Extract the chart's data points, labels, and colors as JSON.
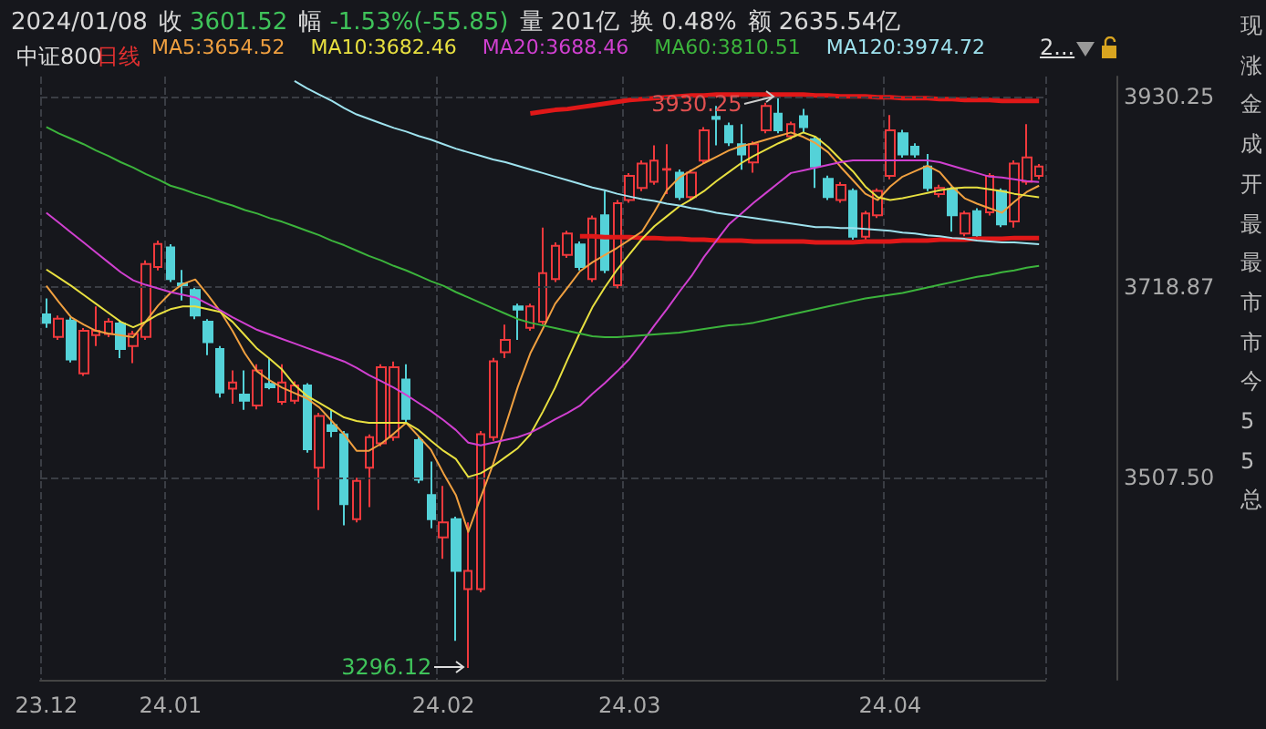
{
  "chart_data": {
    "type": "candlestick",
    "title": "中证800",
    "subtitle": "日线",
    "categories": [
      "23.12",
      null,
      null,
      null,
      null,
      null,
      null,
      null,
      null,
      null,
      "24.01",
      null,
      null,
      null,
      null,
      null,
      null,
      null,
      null,
      null,
      null,
      null,
      null,
      null,
      null,
      null,
      null,
      null,
      null,
      null,
      null,
      null,
      "24.02",
      null,
      null,
      null,
      null,
      null,
      null,
      null,
      null,
      null,
      null,
      null,
      null,
      null,
      null,
      "24.03",
      null,
      null,
      null,
      null,
      null,
      null,
      null,
      null,
      null,
      null,
      null,
      null,
      null,
      null,
      null,
      null,
      null,
      null,
      null,
      null,
      "24.04",
      null,
      null,
      null,
      null,
      null,
      null,
      null,
      null,
      null,
      null,
      null,
      null
    ],
    "ohlc": [
      [
        3688.2,
        3705.8,
        3673.4,
        3678.8
      ],
      [
        3663.3,
        3687,
        3660,
        3683.5
      ],
      [
        3681.5,
        3685,
        3635,
        3638.3
      ],
      [
        3622.8,
        3673,
        3620,
        3670
      ],
      [
        3665.3,
        3697,
        3653.2,
        3670
      ],
      [
        3666.6,
        3684,
        3663,
        3680.1
      ],
      [
        3678.1,
        3681,
        3639.7,
        3649.8
      ],
      [
        3653.2,
        3670,
        3634.3,
        3666.6
      ],
      [
        3663.3,
        3748,
        3660,
        3744.2
      ],
      [
        3740.8,
        3770,
        3737,
        3766.4
      ],
      [
        3762.4,
        3766,
        3724,
        3727.3
      ],
      [
        3722.6,
        3737.4,
        3703.7,
        3720
      ],
      [
        3715.2,
        3719,
        3683,
        3686.9
      ],
      [
        3680.1,
        3683,
        3643,
        3657.37
      ],
      [
        3649.8,
        3653,
        3596,
        3601.52
      ],
      [
        3606,
        3626.2,
        3589.1,
        3612.7
      ],
      [
        3599.2,
        3626.2,
        3582.4,
        3592.5
      ],
      [
        3587.1,
        3632.9,
        3583,
        3626.2
      ],
      [
        3611.3,
        3639.7,
        3605,
        3607.3
      ],
      [
        3591.1,
        3632.9,
        3588,
        3612.7
      ],
      [
        3592.5,
        3614,
        3589,
        3609.3
      ],
      [
        3609.3,
        3612,
        3535,
        3538.6
      ],
      [
        3518.3,
        3579,
        3471.1,
        3575.6
      ],
      [
        3565.5,
        3582.4,
        3552,
        3558.8
      ],
      [
        3555.4,
        3559,
        3454.3,
        3477.9
      ],
      [
        3461,
        3507,
        3457.7,
        3503.5
      ],
      [
        3518.3,
        3555,
        3474.5,
        3552
      ],
      [
        3545.3,
        3633,
        3542,
        3629.6
      ],
      [
        3552,
        3636,
        3548,
        3629.6
      ],
      [
        3616.1,
        3632.9,
        3569,
        3572.3
      ],
      [
        3548.7,
        3552,
        3501,
        3504.8
      ],
      [
        3488,
        3525.1,
        3450.9,
        3461
      ],
      [
        3440.8,
        3498.1,
        3417.2,
        3457.7
      ],
      [
        3461,
        3464,
        3326.2,
        3403.7
      ],
      [
        3383.5,
        3457.7,
        3296.12,
        3403.7
      ],
      [
        3383.5,
        3559,
        3380,
        3555.4
      ],
      [
        3552,
        3640,
        3548,
        3636.3
      ],
      [
        3646.4,
        3676.8,
        3639.7,
        3659.9
      ],
      [
        3697,
        3700,
        3659.9,
        3693.6
      ],
      [
        3673.4,
        3700,
        3670,
        3697
      ],
      [
        3680.1,
        3784.6,
        3677,
        3734
      ],
      [
        3727.3,
        3768,
        3724,
        3764.4
      ],
      [
        3754.3,
        3781,
        3751,
        3777.9
      ],
      [
        3765.8,
        3769,
        3737,
        3740.8
      ],
      [
        3727.3,
        3798,
        3724,
        3794.7
      ],
      [
        3798.1,
        3825.1,
        3734,
        3737.4
      ],
      [
        3720.6,
        3815,
        3717,
        3811.6
      ],
      [
        3815,
        3845,
        3812,
        3841.9
      ],
      [
        3828.5,
        3859,
        3825,
        3855.4
      ],
      [
        3835.2,
        3875.6,
        3832,
        3858.8
      ],
      [
        3848.6,
        3877,
        3821.7,
        3849.5
      ],
      [
        3845.3,
        3849,
        3815,
        3818.4
      ],
      [
        3818.4,
        3849,
        3815,
        3845.3
      ],
      [
        3858.8,
        3896,
        3855,
        3892.5
      ],
      [
        3907.3,
        3919.5,
        3875.6,
        3905
      ],
      [
        3897.2,
        3901,
        3875,
        3879
      ],
      [
        3877,
        3899.2,
        3848.7,
        3865.5
      ],
      [
        3856.8,
        3880,
        3845.3,
        3877
      ],
      [
        3892.5,
        3923,
        3889,
        3919.5
      ],
      [
        3910.7,
        3930.25,
        3889,
        3892.5
      ],
      [
        3885.8,
        3902,
        3882,
        3899.2
      ],
      [
        3908,
        3916.1,
        3889.1,
        3895.9
      ],
      [
        3882.4,
        3885,
        3828.5,
        3852.1
      ],
      [
        3838.6,
        3842,
        3815,
        3818.4
      ],
      [
        3815,
        3835,
        3812,
        3831.8
      ],
      [
        3825.1,
        3828,
        3771,
        3774.5
      ],
      [
        3774.5,
        3803,
        3771,
        3800.1
      ],
      [
        3798.1,
        3828,
        3795,
        3825.1
      ],
      [
        3841.9,
        3909.4,
        3838,
        3892.5
      ],
      [
        3889.1,
        3893,
        3862,
        3865.5
      ],
      [
        3874.3,
        3878,
        3862,
        3865.5
      ],
      [
        3852.1,
        3866,
        3825,
        3828.5
      ],
      [
        3821.7,
        3832,
        3818,
        3828.5
      ],
      [
        3827.1,
        3830,
        3779.9,
        3798.1
      ],
      [
        3777.9,
        3803,
        3775,
        3800.1
      ],
      [
        3802.8,
        3806,
        3773,
        3775.9
      ],
      [
        3801.5,
        3845,
        3798,
        3841.9
      ],
      [
        3825.1,
        3828,
        3785,
        3788
      ],
      [
        3791.4,
        3859,
        3784.6,
        3855.4
      ],
      [
        3835.2,
        3899.2,
        3832,
        3862.2
      ],
      [
        3841.9,
        3855,
        3838,
        3852.1
      ]
    ],
    "colors": [
      "#54d2d8",
      "#f0393c",
      "#54d2d8",
      "#f0393c",
      "#f0393c",
      "#f0393c",
      "#54d2d8",
      "#f0393c",
      "#f0393c",
      "#f0393c",
      "#54d2d8",
      "#54d2d8",
      "#54d2d8",
      "#54d2d8",
      "#54d2d8",
      "#f0393c",
      "#54d2d8",
      "#f0393c",
      "#54d2d8",
      "#f0393c",
      "#f0393c",
      "#54d2d8",
      "#f0393c",
      "#54d2d8",
      "#54d2d8",
      "#f0393c",
      "#f0393c",
      "#f0393c",
      "#f0393c",
      "#54d2d8",
      "#54d2d8",
      "#54d2d8",
      "#f0393c",
      "#54d2d8",
      "#f0393c",
      "#f0393c",
      "#f0393c",
      "#f0393c",
      "#54d2d8",
      "#f0393c",
      "#f0393c",
      "#f0393c",
      "#f0393c",
      "#54d2d8",
      "#f0393c",
      "#54d2d8",
      "#f0393c",
      "#f0393c",
      "#f0393c",
      "#f0393c",
      "#f0393c",
      "#54d2d8",
      "#f0393c",
      "#f0393c",
      "#54d2d8",
      "#54d2d8",
      "#54d2d8",
      "#f0393c",
      "#f0393c",
      "#54d2d8",
      "#f0393c",
      "#54d2d8",
      "#54d2d8",
      "#54d2d8",
      "#f0393c",
      "#54d2d8",
      "#f0393c",
      "#f0393c",
      "#f0393c",
      "#54d2d8",
      "#54d2d8",
      "#54d2d8",
      "#f0393c",
      "#54d2d8",
      "#f0393c",
      "#54d2d8",
      "#f0393c",
      "#54d2d8",
      "#f0393c",
      "#f0393c",
      "#f0393c"
    ],
    "series": [
      {
        "type": "line",
        "name": "MA5:3654.52",
        "color": "#f0a040",
        "values": [
          3720,
          3702,
          3685,
          3677,
          3670,
          3667,
          3665,
          3663,
          3680,
          3698,
          3712,
          3722,
          3727,
          3710,
          3692,
          3670,
          3645,
          3625,
          3615,
          3607,
          3601,
          3595,
          3585,
          3570,
          3555,
          3537,
          3537,
          3545,
          3556,
          3568,
          3553,
          3538,
          3512,
          3488,
          3447,
          3485,
          3522,
          3565,
          3608,
          3645,
          3672,
          3700,
          3718,
          3736,
          3746,
          3754,
          3762,
          3771,
          3780,
          3802,
          3826,
          3840,
          3848,
          3856,
          3863,
          3870,
          3875,
          3878,
          3882,
          3886,
          3890,
          3885,
          3878,
          3868,
          3852,
          3837,
          3822,
          3815,
          3830,
          3841,
          3847,
          3853,
          3846,
          3830,
          3817,
          3811,
          3806,
          3801,
          3813,
          3824,
          3831
        ]
      },
      {
        "type": "line",
        "name": "MA10:3682.46",
        "color": "#e8e040",
        "values": [
          3738,
          3729,
          3720,
          3710,
          3700,
          3690,
          3680,
          3674,
          3680,
          3688,
          3694,
          3697,
          3697,
          3694,
          3691,
          3680,
          3665,
          3650,
          3639,
          3627,
          3610,
          3598,
          3590,
          3582,
          3574,
          3570,
          3568,
          3568,
          3568,
          3568,
          3560,
          3548,
          3537,
          3528,
          3508,
          3512,
          3520,
          3530,
          3540,
          3555,
          3580,
          3607,
          3638,
          3668,
          3696,
          3718,
          3738,
          3755,
          3772,
          3786,
          3797,
          3808,
          3816,
          3825,
          3836,
          3846,
          3856,
          3864,
          3871,
          3878,
          3884,
          3890,
          3885,
          3874,
          3860,
          3847,
          3830,
          3818,
          3815,
          3817,
          3820,
          3823,
          3826,
          3828,
          3829,
          3829,
          3827,
          3825,
          3822,
          3820,
          3818
        ]
      },
      {
        "type": "line",
        "name": "MA20:3688.46",
        "color": "#d040d0",
        "values": [
          3801,
          3790,
          3779,
          3768,
          3757,
          3746,
          3735,
          3726,
          3721,
          3717,
          3713,
          3710,
          3707,
          3700,
          3693,
          3685,
          3678,
          3671,
          3666,
          3661,
          3656,
          3651,
          3646,
          3641,
          3636,
          3629,
          3621,
          3614,
          3607,
          3599,
          3590,
          3581,
          3571,
          3560,
          3546,
          3543,
          3546,
          3549,
          3552,
          3557,
          3564,
          3572,
          3579,
          3587,
          3600,
          3612,
          3625,
          3639,
          3657,
          3676,
          3694,
          3713,
          3731,
          3752,
          3770,
          3788,
          3800,
          3812,
          3823,
          3834,
          3845,
          3848,
          3851,
          3854,
          3857,
          3859,
          3859,
          3859,
          3859,
          3859,
          3859,
          3859,
          3857,
          3853,
          3849,
          3845,
          3841,
          3840,
          3838,
          3836,
          3835
        ]
      },
      {
        "type": "line",
        "name": "MA60:3810.51",
        "color": "#3cb43c",
        "values": [
          3896,
          3889,
          3883,
          3877,
          3870,
          3864,
          3857,
          3851,
          3844,
          3838,
          3831,
          3827,
          3822,
          3818,
          3813,
          3809,
          3804,
          3800,
          3795,
          3791,
          3786,
          3781,
          3776,
          3770,
          3765,
          3759,
          3753,
          3748,
          3742,
          3737,
          3731,
          3725,
          3720,
          3713,
          3707,
          3701,
          3695,
          3689,
          3683,
          3679,
          3676,
          3673,
          3670,
          3667,
          3664,
          3663,
          3663,
          3664,
          3665,
          3666,
          3667,
          3668,
          3670,
          3672,
          3674,
          3676,
          3677,
          3679,
          3682,
          3685,
          3688,
          3691,
          3694,
          3697,
          3700,
          3703,
          3706,
          3708,
          3710,
          3712,
          3715,
          3718,
          3721,
          3724,
          3727,
          3730,
          3732,
          3735,
          3737,
          3740,
          3742
        ]
      },
      {
        "type": "line",
        "name": "MA120:3974.72",
        "color": "#9ee2ee",
        "values": [
          null,
          null,
          null,
          null,
          null,
          null,
          null,
          null,
          null,
          null,
          null,
          null,
          null,
          null,
          null,
          null,
          null,
          null,
          null,
          null,
          3947,
          3939,
          3932,
          3925,
          3917,
          3910,
          3905,
          3900,
          3895,
          3891,
          3886,
          3882,
          3877,
          3872,
          3868,
          3864,
          3860,
          3857,
          3853,
          3849,
          3845,
          3841,
          3837,
          3833,
          3829,
          3826,
          3822,
          3819,
          3816,
          3814,
          3811,
          3809,
          3806,
          3804,
          3801,
          3799,
          3797,
          3795,
          3793,
          3791,
          3789,
          3787,
          3785,
          3785,
          3784,
          3784,
          3783,
          3782,
          3781,
          3779,
          3778,
          3776,
          3775,
          3773,
          3772,
          3770,
          3769,
          3768,
          3768,
          3767,
          3766
        ]
      },
      {
        "type": "line",
        "color": "#e01818",
        "values": [
          null,
          null,
          null,
          null,
          null,
          null,
          null,
          null,
          null,
          null,
          null,
          null,
          null,
          null,
          null,
          null,
          null,
          null,
          null,
          null,
          null,
          null,
          null,
          null,
          null,
          null,
          null,
          null,
          null,
          null,
          null,
          null,
          null,
          null,
          null,
          null,
          null,
          null,
          null,
          3911,
          3913,
          3915,
          3916,
          3918,
          3920,
          3922,
          3924,
          3926,
          3927,
          3928,
          3929,
          3930,
          3931,
          3931,
          3932,
          3932,
          3932,
          3932,
          3932,
          3932,
          3932,
          3932,
          3931,
          3931,
          3930,
          3930,
          3930,
          3929,
          3929,
          3928,
          3928,
          3928,
          3927,
          3927,
          3926,
          3926,
          3926,
          3925,
          3925,
          3925,
          3925
        ]
      },
      {
        "type": "line",
        "color": "#e01818",
        "values": [
          null,
          null,
          null,
          null,
          null,
          null,
          null,
          null,
          null,
          null,
          null,
          null,
          null,
          null,
          null,
          null,
          null,
          null,
          null,
          null,
          null,
          null,
          null,
          null,
          null,
          null,
          null,
          null,
          null,
          null,
          null,
          null,
          null,
          null,
          null,
          null,
          null,
          null,
          null,
          null,
          null,
          null,
          null,
          3775,
          3775,
          3774,
          3774,
          3774,
          3773,
          3773,
          3772,
          3772,
          3771,
          3771,
          3770,
          3770,
          3770,
          3769,
          3769,
          3769,
          3769,
          3769,
          3768,
          3768,
          3768,
          3768,
          3769,
          3769,
          3769,
          3770,
          3770,
          3770,
          3771,
          3771,
          3771,
          3772,
          3772,
          3772,
          3773,
          3773,
          3773
        ]
      }
    ],
    "ylim": [
      3283,
      3952
    ],
    "yticks": [
      {
        "value": 3507.5,
        "label": "3507.50"
      },
      3718.87,
      3930.25
    ],
    "grid": true,
    "legend": "top left",
    "annotations": [
      "2024/01/08",
      "收",
      "3601.52",
      "幅",
      "-1.53%(-55.85)",
      "量",
      "201亿",
      "换",
      "0.48%",
      "额",
      "2635.54亿",
      "2...",
      "现",
      "涨",
      "金",
      "成",
      "开",
      "最",
      "最",
      "市",
      "市",
      "今",
      "5",
      "5",
      "总",
      {
        "text": "3930.25",
        "y": 3930.25
      },
      "3296.12"
    ]
  }
}
